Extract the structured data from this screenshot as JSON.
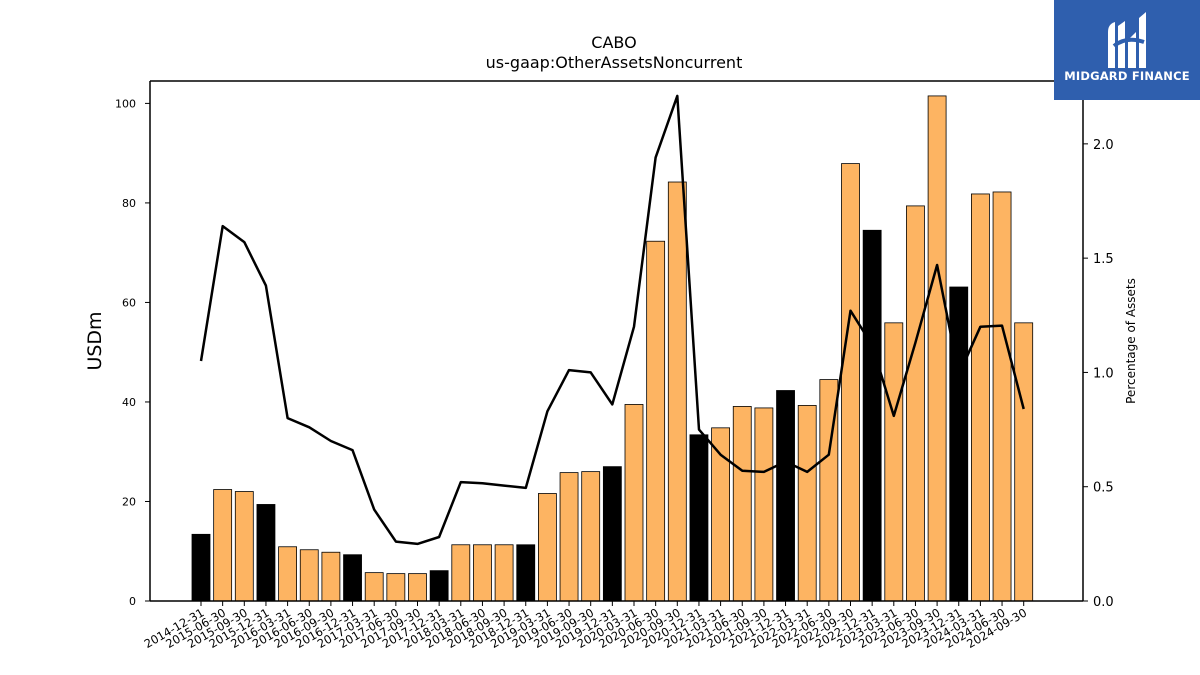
{
  "chart_data": {
    "type": "bar",
    "title": "CABO",
    "subtitle": "us-gaap:OtherAssetsNoncurrent",
    "ylabel": "USDm",
    "y2label": "Percentage of Assets",
    "ylim": [
      0,
      104.5
    ],
    "y2lim": [
      0,
      2.275
    ],
    "yticks": [
      0,
      20,
      40,
      60,
      80,
      100
    ],
    "y2ticks": [
      "0.0",
      "0.5",
      "1.0",
      "1.5",
      "2.0"
    ],
    "colors": {
      "annual": "#000000",
      "quarterly": "#fdb462",
      "line": "#000000"
    },
    "categories": [
      "2014-12-31",
      "2015-06-30",
      "2015-09-30",
      "2015-12-31",
      "2016-03-31",
      "2016-06-30",
      "2016-09-30",
      "2016-12-31",
      "2017-03-31",
      "2017-06-30",
      "2017-09-30",
      "2017-12-31",
      "2018-03-31",
      "2018-06-30",
      "2018-09-30",
      "2018-12-31",
      "2019-03-31",
      "2019-06-30",
      "2019-09-30",
      "2019-12-31",
      "2020-03-31",
      "2020-06-30",
      "2020-09-30",
      "2020-12-31",
      "2021-03-31",
      "2021-06-30",
      "2021-09-30",
      "2021-12-31",
      "2022-03-31",
      "2022-06-30",
      "2022-09-30",
      "2022-12-31",
      "2023-03-31",
      "2023-06-30",
      "2023-09-30",
      "2023-12-31",
      "2024-03-31",
      "2024-06-30",
      "2024-09-30"
    ],
    "series": [
      {
        "values": [
          13.4,
          22.4,
          22.0,
          19.4,
          10.9,
          10.3,
          9.8,
          9.3,
          5.7,
          5.5,
          5.5,
          6.1,
          11.3,
          11.3,
          11.3,
          11.3,
          21.6,
          25.8,
          26.0,
          27.0,
          39.5,
          72.3,
          84.2,
          33.4,
          34.8,
          39.1,
          38.8,
          42.3,
          39.3,
          44.5,
          87.9,
          74.5,
          55.9,
          79.4,
          101.5,
          63.1,
          81.8,
          82.2,
          55.9
        ]
      },
      {
        "axis": "right",
        "values": [
          1.05,
          1.64,
          1.57,
          1.38,
          0.8,
          0.76,
          0.7,
          0.66,
          0.4,
          0.26,
          0.25,
          0.28,
          0.52,
          0.515,
          0.505,
          0.495,
          0.83,
          1.01,
          1.0,
          0.86,
          1.2,
          1.94,
          2.21,
          0.75,
          0.64,
          0.57,
          0.565,
          0.61,
          0.565,
          0.64,
          1.27,
          1.12,
          0.81,
          1.13,
          1.47,
          0.99,
          1.2,
          1.205,
          0.84
        ]
      }
    ],
    "annual_flags": [
      true,
      false,
      false,
      true,
      false,
      false,
      false,
      true,
      false,
      false,
      false,
      true,
      false,
      false,
      false,
      true,
      false,
      false,
      false,
      true,
      false,
      false,
      false,
      true,
      false,
      false,
      false,
      true,
      false,
      false,
      false,
      true,
      false,
      false,
      false,
      true,
      false,
      false,
      false
    ]
  },
  "logo": {
    "text": "MIDGARD FINANCE",
    "icon": "midgard-logo-icon",
    "bg": "#2f5fae"
  }
}
